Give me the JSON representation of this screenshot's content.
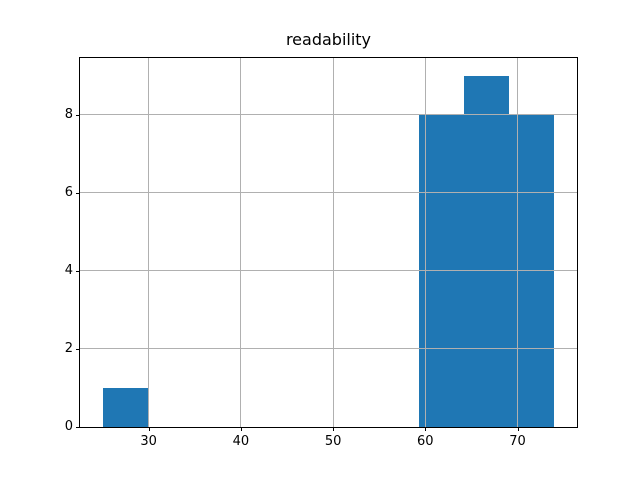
{
  "figure": {
    "background": "#ffffff"
  },
  "chart_data": {
    "type": "bar",
    "subtype": "histogram",
    "title": "readability",
    "xlabel": "",
    "ylabel": "",
    "bin_edges": [
      25.0,
      29.9,
      34.8,
      39.7,
      44.6,
      49.5,
      54.4,
      59.3,
      64.2,
      69.1,
      74.0
    ],
    "counts": [
      1,
      0,
      0,
      0,
      0,
      0,
      0,
      8,
      9,
      8
    ],
    "xticks": [
      "30",
      "40",
      "50",
      "60",
      "70"
    ],
    "xtick_values": [
      30,
      40,
      50,
      60,
      70
    ],
    "yticks": [
      "0",
      "2",
      "4",
      "6",
      "8"
    ],
    "ytick_values": [
      0,
      2,
      4,
      6,
      8
    ],
    "xlim": [
      22.55,
      76.45
    ],
    "ylim": [
      0,
      9.45
    ],
    "grid": true,
    "grid_above_bars": true,
    "legend_position": "none",
    "bar_color": "#1f77b4",
    "grid_color": "#b0b0b0",
    "spine_color": "#000000",
    "tick_color": "#000000",
    "text_color": "#000000"
  }
}
